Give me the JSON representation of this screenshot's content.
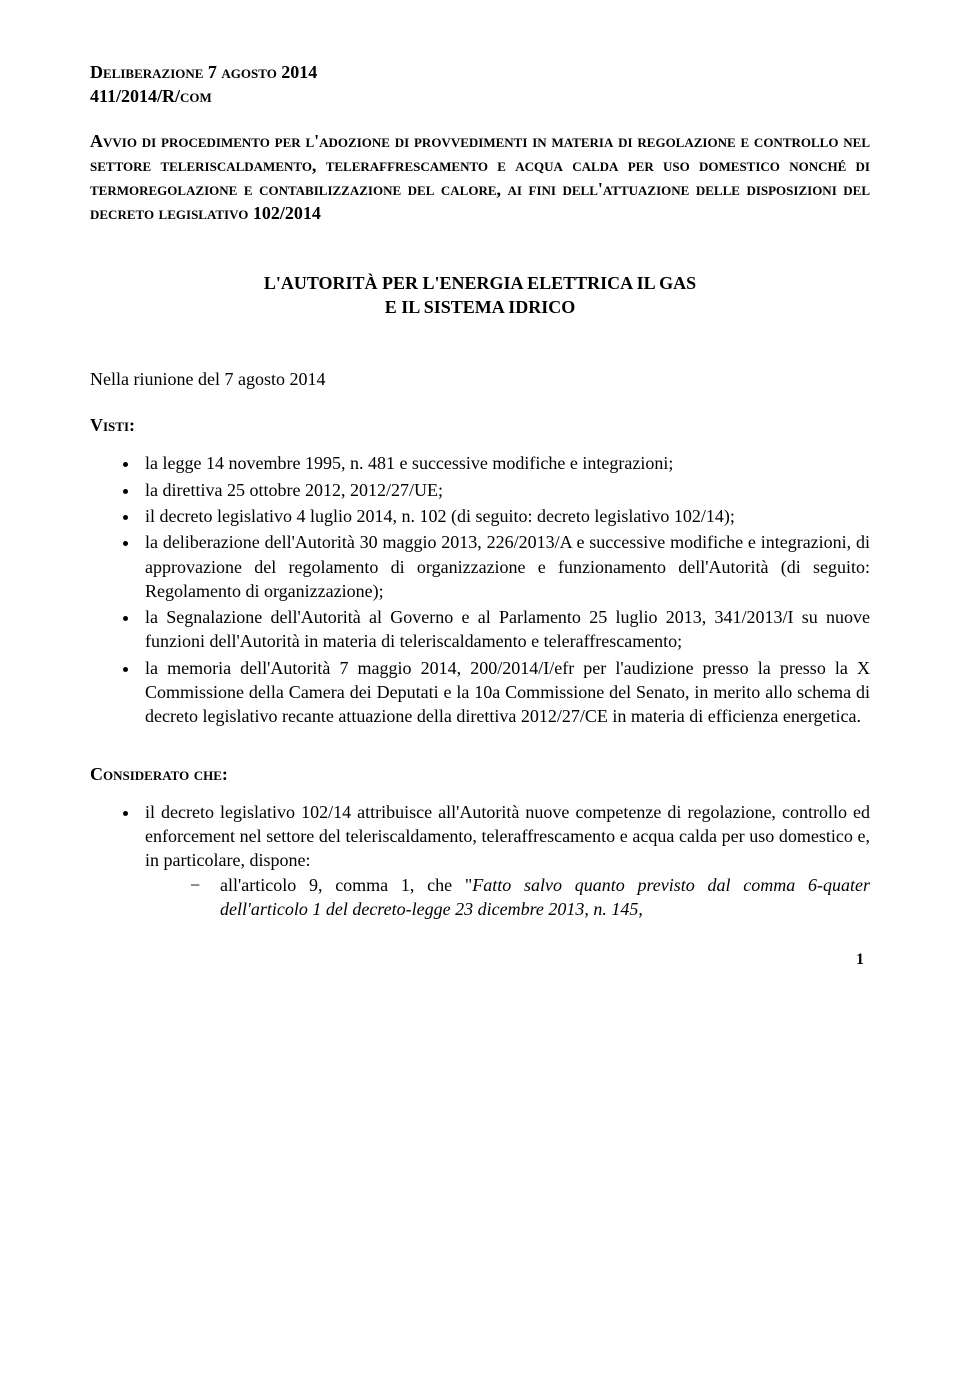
{
  "header": {
    "line1": "Deliberazione 7 agosto 2014",
    "line2": "411/2014/R/com"
  },
  "title": "Avvio di procedimento per l'adozione di provvedimenti in materia di regolazione e controllo nel settore teleriscaldamento, teleraffrescamento e acqua calda per uso domestico nonché di termoregolazione e contabilizzazione del calore, ai fini dell'attuazione delle disposizioni del decreto legislativo 102/2014",
  "authority": {
    "line1": "L'AUTORITÀ PER L'ENERGIA ELETTRICA IL GAS",
    "line2": "E IL SISTEMA IDRICO"
  },
  "meeting": "Nella riunione del 7 agosto 2014",
  "visti": {
    "head": "Visti:",
    "items": [
      "la legge 14 novembre 1995, n. 481 e successive modifiche e integrazioni;",
      "la direttiva 25 ottobre 2012, 2012/27/UE;",
      "il decreto legislativo 4 luglio 2014, n. 102 (di seguito: decreto legislativo 102/14);",
      "la deliberazione dell'Autorità 30 maggio 2013, 226/2013/A e successive modifiche e integrazioni, di approvazione del regolamento di organizzazione e funzionamento dell'Autorità (di seguito: Regolamento di organizzazione);",
      "la Segnalazione dell'Autorità al Governo e al Parlamento 25 luglio 2013, 341/2013/I su nuove funzioni dell'Autorità in materia di teleriscaldamento e teleraffrescamento;",
      "la memoria dell'Autorità 7 maggio 2014, 200/2014/I/efr per l'audizione presso la presso la X Commissione della Camera dei Deputati e la 10a Commissione del Senato, in merito allo schema di decreto legislativo recante attuazione della direttiva 2012/27/CE in materia di efficienza energetica."
    ]
  },
  "considerato": {
    "head": "Considerato che:",
    "intro": "il decreto legislativo 102/14 attribuisce all'Autorità nuove competenze di regolazione, controllo ed enforcement nel settore del teleriscaldamento, teleraffrescamento e acqua calda per uso domestico e, in particolare, dispone:",
    "sub": {
      "prefix": "all'articolo 9, comma 1, che \"",
      "italic": "Fatto salvo quanto previsto dal comma 6-quater dell'articolo 1 del decreto-legge 23 dicembre 2013, n. 145,"
    }
  },
  "page_number": "1"
}
